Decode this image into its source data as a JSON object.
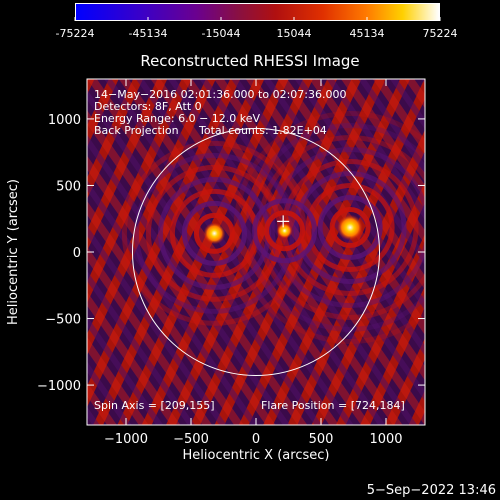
{
  "colorbar": {
    "tick_labels": [
      "-75224",
      "-45134",
      "-15044",
      "15044",
      "45134",
      "75224"
    ],
    "range": [
      -75224,
      75224
    ]
  },
  "plot": {
    "title": "Reconstructed RHESSI Image",
    "xlabel": "Heliocentric X (arcsec)",
    "ylabel": "Heliocentric Y (arcsec)",
    "xlim": [
      -1300,
      1300
    ],
    "ylim": [
      -1300,
      1300
    ],
    "x_ticks": [
      -1000,
      -500,
      0,
      500,
      1000
    ],
    "y_ticks": [
      -1000,
      -500,
      0,
      500,
      1000
    ],
    "x_tick_labels": [
      "−1000",
      "−500",
      "0",
      "500",
      "1000"
    ],
    "y_tick_labels": [
      "−1000",
      "−500",
      "0",
      "500",
      "1000"
    ],
    "solar_radius_arcsec": 950,
    "annotations": {
      "line1": "14−May−2016 02:01:36.000 to 02:07:36.000",
      "line2": "Detectors: 8F, Att 0",
      "line3": "Energy Range: 6.0 − 12.0 keV",
      "line4_left": "Back Projection",
      "line4_right": "Total counts: 1.82E+04",
      "spin_axis": "Spin Axis = [209,155]",
      "flare_position": "Flare Position = [724,184]"
    },
    "sources": [
      {
        "x": 724,
        "y": 184
      },
      {
        "x": -320,
        "y": 140
      },
      {
        "x": 220,
        "y": 160
      }
    ],
    "spin_axis_marker": {
      "x": 209,
      "y": 155
    }
  },
  "footer": {
    "date": "5−Sep−2022 13:46"
  }
}
